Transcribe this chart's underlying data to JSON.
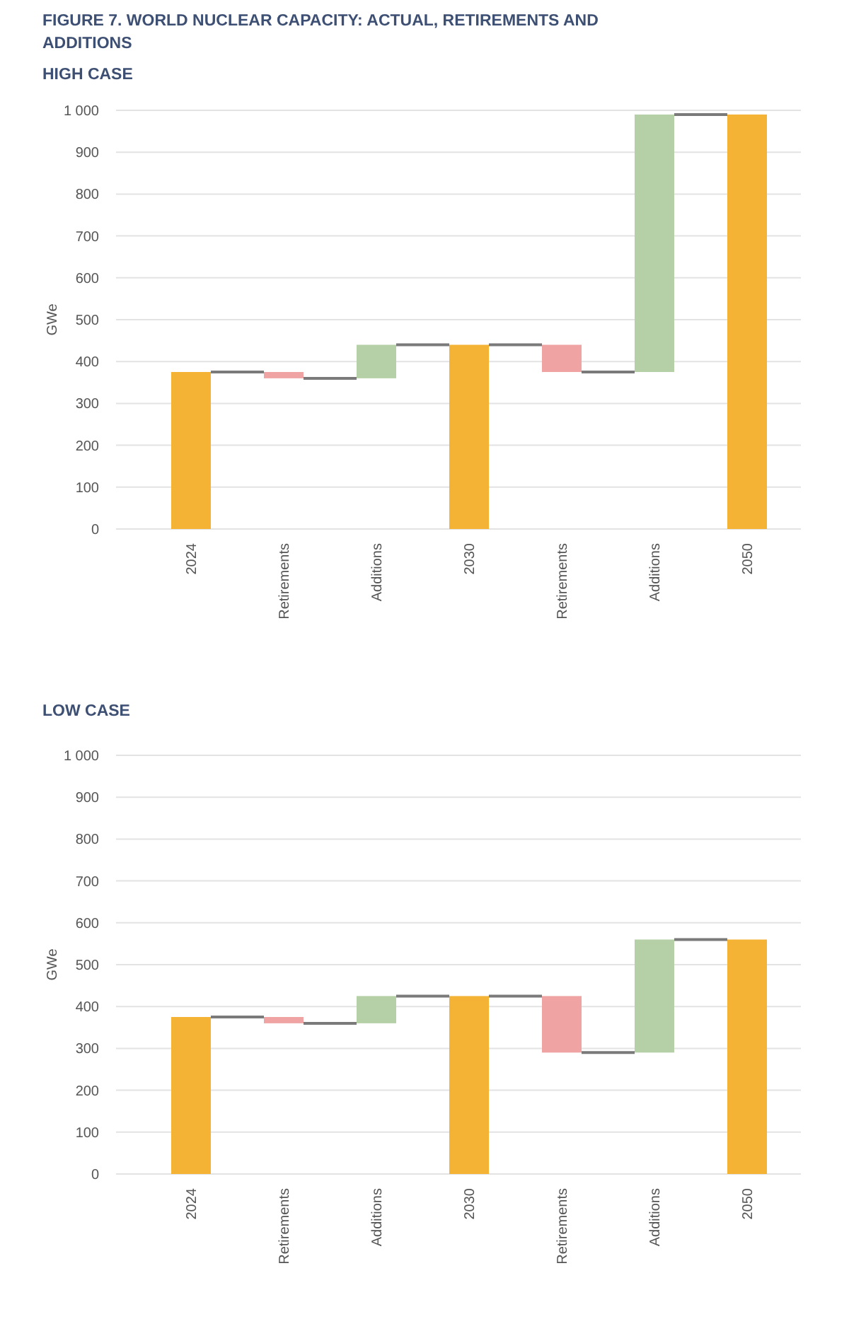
{
  "chart_data": [
    {
      "type": "bar",
      "title": "FIGURE 7. WORLD NUCLEAR CAPACITY: ACTUAL, RETIREMENTS AND ADDITIONS",
      "subtitle": "HIGH CASE",
      "ylabel": "GWe",
      "categories": [
        "2024",
        "Retirements",
        "Additions",
        "2030",
        "Retirements",
        "Additions",
        "2050"
      ],
      "values": [
        375,
        -15,
        80,
        440,
        -65,
        615,
        990
      ],
      "base": [
        0,
        375,
        360,
        0,
        440,
        375,
        0
      ],
      "colors": [
        "#f5b335",
        "#f0a3a3",
        "#b5d0a6",
        "#f5b335",
        "#f0a3a3",
        "#b5d0a6",
        "#f5b335"
      ],
      "ylim": [
        0,
        1000
      ],
      "yticks": [
        0,
        100,
        200,
        300,
        400,
        500,
        600,
        700,
        800,
        900,
        {
          "value": 1000,
          "label": "1 000"
        }
      ],
      "grid": "y"
    },
    {
      "type": "bar",
      "title": "LOW CASE",
      "ylabel": "GWe",
      "categories": [
        "2024",
        "Retirements",
        "Additions",
        "2030",
        "Retirements",
        "Additions",
        "2050"
      ],
      "values": [
        375,
        -15,
        65,
        425,
        -135,
        270,
        560
      ],
      "base": [
        0,
        375,
        360,
        0,
        425,
        290,
        0
      ],
      "colors": [
        "#f5b335",
        "#f0a3a3",
        "#b5d0a6",
        "#f5b335",
        "#f0a3a3",
        "#b5d0a6",
        "#f5b335"
      ],
      "ylim": [
        0,
        1000
      ],
      "yticks": [
        0,
        100,
        200,
        300,
        400,
        500,
        600,
        700,
        800,
        900,
        {
          "value": 1000,
          "label": "1 000"
        }
      ],
      "grid": "y"
    }
  ]
}
